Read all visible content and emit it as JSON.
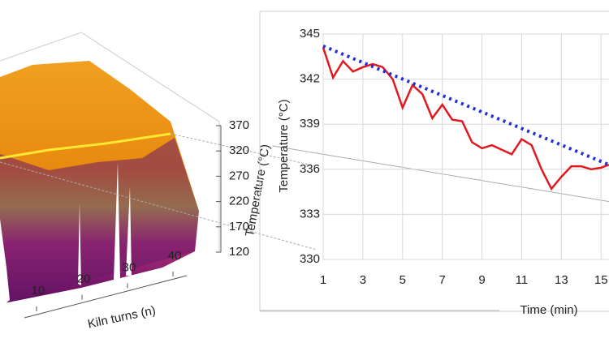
{
  "chart_data": [
    {
      "type": "surface3d",
      "zlabel": "Temperature (°C)",
      "xlabel": "Kiln turns (n)",
      "zlim": [
        120,
        370
      ],
      "zticks": [
        120,
        170,
        220,
        270,
        320,
        370
      ],
      "xlim": [
        10,
        40
      ],
      "xticks": [
        10,
        20,
        30,
        40
      ]
    },
    {
      "type": "line",
      "ylabel": "Temperature (°C)",
      "xlabel": "Time (min)",
      "xlim": [
        1,
        15.4
      ],
      "xticks": [
        1,
        3,
        5,
        7,
        9,
        11,
        13,
        15
      ],
      "ylim": [
        330,
        345
      ],
      "yticks": [
        330,
        333,
        336,
        339,
        342,
        345
      ],
      "grid": true,
      "series": [
        {
          "color": "#e0191f",
          "dash": false,
          "x": [
            1,
            1.5,
            2,
            2.5,
            3,
            3.5,
            4,
            4.5,
            5,
            5.5,
            6,
            6.5,
            7,
            7.5,
            8,
            8.5,
            9,
            9.5,
            10,
            10.5,
            11,
            11.5,
            12,
            12.5,
            13,
            13.5,
            14,
            14.5,
            15,
            15.4
          ],
          "values": [
            344.1,
            342.1,
            343.2,
            342.5,
            342.8,
            343.0,
            342.8,
            342.0,
            340.1,
            341.6,
            341.0,
            339.4,
            340.3,
            339.3,
            339.2,
            337.8,
            337.4,
            337.6,
            337.3,
            337.0,
            338.0,
            337.6,
            336.0,
            334.7,
            335.5,
            336.2,
            336.2,
            336.0,
            336.1,
            336.3
          ]
        },
        {
          "color": "#1f2ed6",
          "dash": true,
          "x": [
            1,
            15.4
          ],
          "values": [
            344.2,
            336.3
          ]
        }
      ]
    }
  ]
}
